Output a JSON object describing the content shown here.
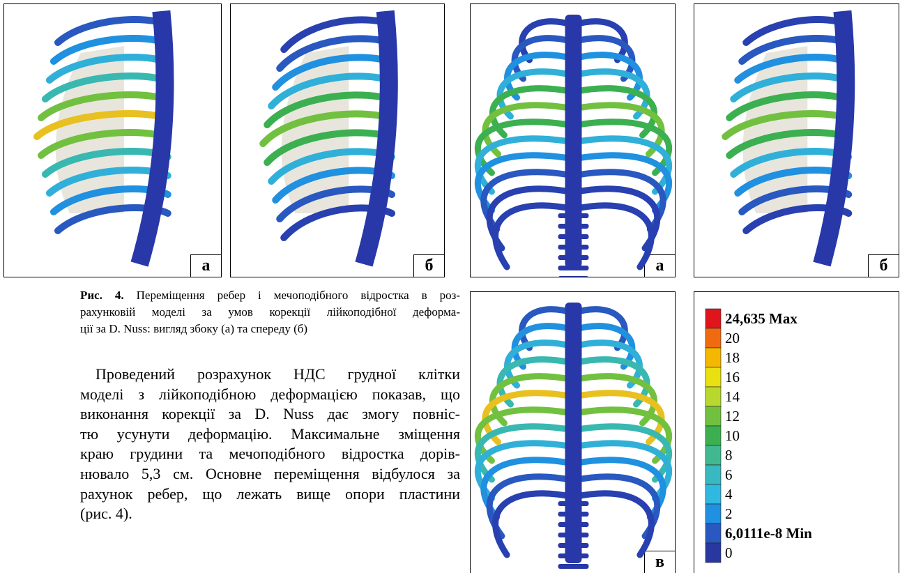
{
  "panels": [
    {
      "label": "а"
    },
    {
      "label": "б"
    },
    {
      "label": "а"
    },
    {
      "label": "б"
    },
    {
      "label": "в"
    }
  ],
  "caption": {
    "label": "Рис. 4.",
    "lines": [
      "Переміщення ребер і мечоподібного відростка в роз-",
      "рахунковій моделі за умов корекції лійкоподібної деформа-",
      "ції за D. Nuss: вигляд збоку (а) та спереду (б)"
    ]
  },
  "paragraph": {
    "lines": [
      "Проведений розрахунок НДС грудної клітки",
      "моделі з лійкоподібною деформацією показав, що",
      "виконання корекції за D. Nuss дає змогу повніс-",
      "тю усунути деформацію. Максимальне зміщення",
      "краю грудини та мечоподібного відростка дорів-",
      "нювало 5,3 см. Основне переміщення відбулося за",
      "рахунок ребер, що лежать вище опори пластини",
      "(рис. 4)."
    ]
  },
  "legend": {
    "items": [
      {
        "label": "24,635 Max",
        "color": "#e0141c"
      },
      {
        "label": "20",
        "color": "#f06a10"
      },
      {
        "label": "18",
        "color": "#f5b800"
      },
      {
        "label": "16",
        "color": "#e8e010"
      },
      {
        "label": "14",
        "color": "#b8d830"
      },
      {
        "label": "12",
        "color": "#72c040"
      },
      {
        "label": "10",
        "color": "#3cb050"
      },
      {
        "label": "8",
        "color": "#40b890"
      },
      {
        "label": "6",
        "color": "#38b8c0"
      },
      {
        "label": "4",
        "color": "#30b8e0"
      },
      {
        "label": "2",
        "color": "#2090e0"
      },
      {
        "label": "6,0111e-8 Min",
        "color": "#2858c0"
      },
      {
        "label": "0",
        "color": "#2838a0"
      }
    ]
  }
}
